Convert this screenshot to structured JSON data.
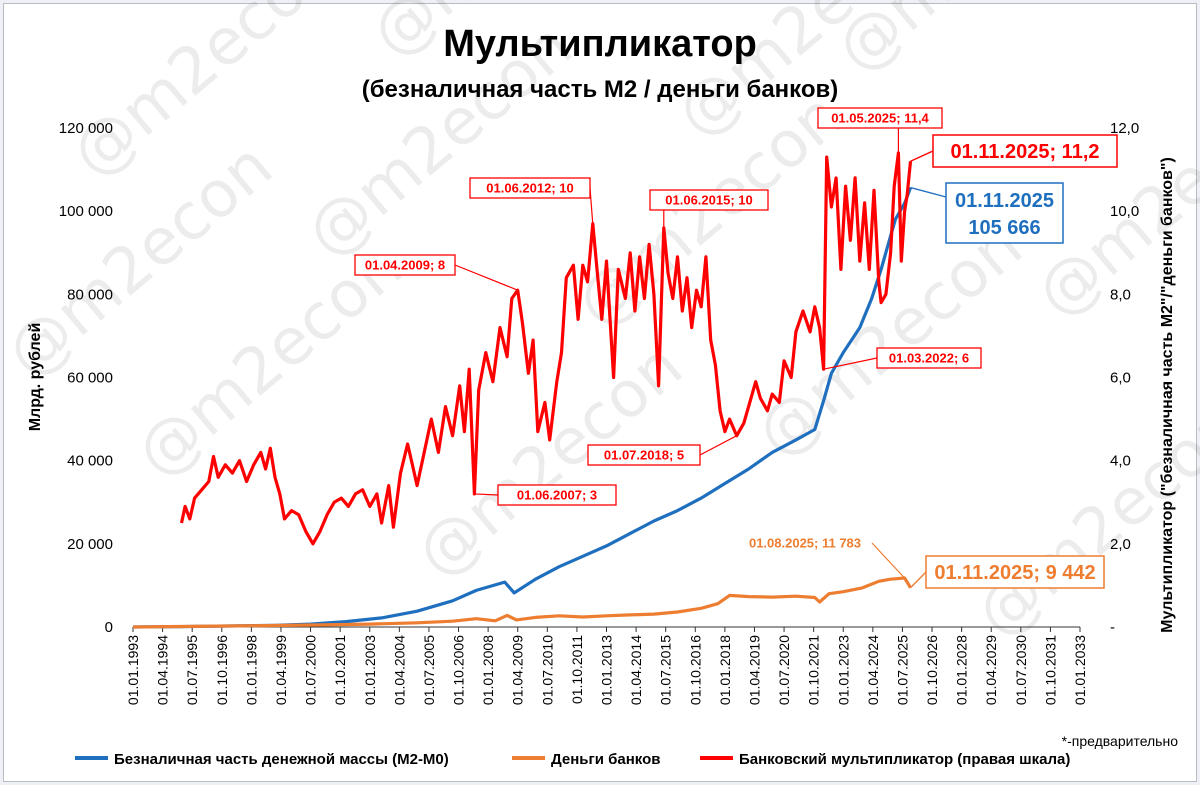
{
  "watermark": "@m2econ",
  "colors": {
    "m2": "#1f6fbf",
    "bank_money": "#ed7d31",
    "multiplier": "#ff0000"
  },
  "chart_data": {
    "type": "line",
    "title": "Мультипликатор",
    "subtitle": "(безналичная часть М2 / деньги банков)",
    "ylabel": "Млрд. рублей",
    "ylabel_right": "Мультипликатор (\"безналичная часть М2\"/\"деньги банков\")",
    "ylim": [
      0,
      120000
    ],
    "ylim_right": [
      0,
      12
    ],
    "yticks": [
      "0",
      "20 000",
      "40 000",
      "60 000",
      "80 000",
      "100 000",
      "120 000"
    ],
    "yticks_right": [
      "-",
      "2,0",
      "4,0",
      "6,0",
      "8,0",
      "10,0",
      "12,0"
    ],
    "xticks": [
      "01.01.1993",
      "01.04.1994",
      "01.07.1995",
      "01.10.1996",
      "01.01.1998",
      "01.04.1999",
      "01.07.2000",
      "01.10.2001",
      "01.01.2003",
      "01.04.2004",
      "01.07.2005",
      "01.10.2006",
      "01.01.2008",
      "01.04.2009",
      "01.07.2010",
      "01.10.2011",
      "01.01.2013",
      "01.04.2014",
      "01.07.2015",
      "01.10.2016",
      "01.01.2018",
      "01.04.2019",
      "01.07.2020",
      "01.10.2021",
      "01.01.2023",
      "01.04.2024",
      "01.07.2025",
      "01.10.2026",
      "01.01.2028",
      "01.04.2029",
      "01.07.2030",
      "01.10.2031",
      "01.01.2033"
    ],
    "x_start": 1993.0,
    "x_end": 2033.0,
    "grid": false,
    "legend_position": "bottom",
    "series": [
      {
        "name": "Безналичная часть денежной массы (М2-М0)",
        "axis": "left",
        "points": [
          [
            1993.0,
            0
          ],
          [
            1995.0,
            100
          ],
          [
            1997.0,
            250
          ],
          [
            1999.0,
            400
          ],
          [
            2000.5,
            700
          ],
          [
            2002.0,
            1300
          ],
          [
            2003.5,
            2200
          ],
          [
            2005.0,
            3800
          ],
          [
            2006.5,
            6300
          ],
          [
            2007.5,
            8800
          ],
          [
            2008.7,
            10800
          ],
          [
            2009.1,
            8200
          ],
          [
            2010.0,
            11500
          ],
          [
            2011.0,
            14500
          ],
          [
            2012.0,
            17000
          ],
          [
            2013.0,
            19500
          ],
          [
            2014.0,
            22500
          ],
          [
            2015.0,
            25500
          ],
          [
            2016.0,
            28000
          ],
          [
            2017.0,
            31000
          ],
          [
            2018.0,
            34500
          ],
          [
            2019.0,
            38000
          ],
          [
            2020.0,
            42000
          ],
          [
            2021.0,
            45000
          ],
          [
            2021.8,
            47500
          ],
          [
            2022.2,
            55000
          ],
          [
            2022.5,
            61000
          ],
          [
            2023.0,
            66000
          ],
          [
            2023.7,
            72000
          ],
          [
            2024.2,
            79000
          ],
          [
            2024.6,
            86000
          ],
          [
            2024.9,
            92000
          ],
          [
            2025.2,
            98000
          ],
          [
            2025.6,
            102000
          ],
          [
            2025.84,
            105666
          ]
        ]
      },
      {
        "name": "Деньги банков",
        "axis": "left",
        "points": [
          [
            1993.0,
            0
          ],
          [
            1995.0,
            120
          ],
          [
            1997.0,
            250
          ],
          [
            1999.0,
            350
          ],
          [
            2001.0,
            500
          ],
          [
            2003.0,
            700
          ],
          [
            2005.0,
            1000
          ],
          [
            2006.5,
            1400
          ],
          [
            2007.5,
            2000
          ],
          [
            2008.3,
            1500
          ],
          [
            2008.8,
            2800
          ],
          [
            2009.2,
            1700
          ],
          [
            2010.0,
            2300
          ],
          [
            2011.0,
            2700
          ],
          [
            2012.0,
            2400
          ],
          [
            2013.0,
            2700
          ],
          [
            2014.0,
            2900
          ],
          [
            2015.0,
            3100
          ],
          [
            2016.0,
            3600
          ],
          [
            2017.0,
            4500
          ],
          [
            2017.7,
            5600
          ],
          [
            2018.2,
            7600
          ],
          [
            2019.0,
            7300
          ],
          [
            2020.0,
            7200
          ],
          [
            2021.0,
            7400
          ],
          [
            2021.8,
            7100
          ],
          [
            2022.0,
            6000
          ],
          [
            2022.4,
            8000
          ],
          [
            2023.0,
            8500
          ],
          [
            2023.8,
            9400
          ],
          [
            2024.5,
            11000
          ],
          [
            2025.0,
            11500
          ],
          [
            2025.59,
            11783
          ],
          [
            2025.84,
            9442
          ]
        ]
      },
      {
        "name": "Банковский мультипликатор (правая шкала)",
        "axis": "right",
        "points": [
          [
            1995.05,
            2.5
          ],
          [
            1995.2,
            2.9
          ],
          [
            1995.4,
            2.6
          ],
          [
            1995.6,
            3.1
          ],
          [
            1995.9,
            3.3
          ],
          [
            1996.2,
            3.5
          ],
          [
            1996.4,
            4.1
          ],
          [
            1996.6,
            3.6
          ],
          [
            1996.9,
            3.9
          ],
          [
            1997.2,
            3.7
          ],
          [
            1997.5,
            4.0
          ],
          [
            1997.8,
            3.5
          ],
          [
            1998.1,
            3.9
          ],
          [
            1998.4,
            4.2
          ],
          [
            1998.6,
            3.8
          ],
          [
            1998.8,
            4.3
          ],
          [
            1999.0,
            3.6
          ],
          [
            1999.2,
            3.2
          ],
          [
            1999.4,
            2.6
          ],
          [
            1999.7,
            2.8
          ],
          [
            2000.0,
            2.7
          ],
          [
            2000.3,
            2.3
          ],
          [
            2000.6,
            2.0
          ],
          [
            2000.9,
            2.3
          ],
          [
            2001.2,
            2.7
          ],
          [
            2001.5,
            3.0
          ],
          [
            2001.8,
            3.1
          ],
          [
            2002.1,
            2.9
          ],
          [
            2002.4,
            3.2
          ],
          [
            2002.7,
            3.3
          ],
          [
            2003.0,
            2.9
          ],
          [
            2003.3,
            3.2
          ],
          [
            2003.5,
            2.5
          ],
          [
            2003.8,
            3.4
          ],
          [
            2004.0,
            2.4
          ],
          [
            2004.3,
            3.7
          ],
          [
            2004.6,
            4.4
          ],
          [
            2004.8,
            3.9
          ],
          [
            2005.0,
            3.4
          ],
          [
            2005.3,
            4.2
          ],
          [
            2005.6,
            5.0
          ],
          [
            2005.9,
            4.2
          ],
          [
            2006.2,
            5.3
          ],
          [
            2006.5,
            4.6
          ],
          [
            2006.8,
            5.8
          ],
          [
            2007.0,
            4.7
          ],
          [
            2007.2,
            6.2
          ],
          [
            2007.42,
            3.2
          ],
          [
            2007.6,
            5.7
          ],
          [
            2007.9,
            6.6
          ],
          [
            2008.2,
            5.9
          ],
          [
            2008.5,
            7.2
          ],
          [
            2008.8,
            6.5
          ],
          [
            2009.0,
            7.9
          ],
          [
            2009.25,
            8.1
          ],
          [
            2009.45,
            7.3
          ],
          [
            2009.7,
            6.1
          ],
          [
            2009.9,
            6.9
          ],
          [
            2010.1,
            4.7
          ],
          [
            2010.4,
            5.4
          ],
          [
            2010.6,
            4.5
          ],
          [
            2010.9,
            5.9
          ],
          [
            2011.1,
            6.6
          ],
          [
            2011.3,
            8.4
          ],
          [
            2011.6,
            8.7
          ],
          [
            2011.8,
            7.4
          ],
          [
            2012.0,
            8.7
          ],
          [
            2012.2,
            8.3
          ],
          [
            2012.42,
            9.7
          ],
          [
            2012.6,
            8.6
          ],
          [
            2012.8,
            7.4
          ],
          [
            2013.0,
            8.8
          ],
          [
            2013.3,
            6.0
          ],
          [
            2013.5,
            8.6
          ],
          [
            2013.8,
            7.9
          ],
          [
            2014.0,
            9.0
          ],
          [
            2014.2,
            7.6
          ],
          [
            2014.4,
            8.9
          ],
          [
            2014.6,
            7.9
          ],
          [
            2014.8,
            9.2
          ],
          [
            2015.0,
            8.0
          ],
          [
            2015.2,
            5.8
          ],
          [
            2015.42,
            9.6
          ],
          [
            2015.6,
            8.5
          ],
          [
            2015.8,
            7.9
          ],
          [
            2016.0,
            8.9
          ],
          [
            2016.2,
            7.6
          ],
          [
            2016.4,
            8.4
          ],
          [
            2016.6,
            7.2
          ],
          [
            2016.8,
            8.1
          ],
          [
            2017.0,
            7.7
          ],
          [
            2017.2,
            8.9
          ],
          [
            2017.4,
            6.9
          ],
          [
            2017.6,
            6.3
          ],
          [
            2017.8,
            5.2
          ],
          [
            2018.0,
            4.7
          ],
          [
            2018.2,
            5.0
          ],
          [
            2018.5,
            4.6
          ],
          [
            2018.8,
            4.9
          ],
          [
            2019.0,
            5.3
          ],
          [
            2019.3,
            5.9
          ],
          [
            2019.5,
            5.5
          ],
          [
            2019.8,
            5.2
          ],
          [
            2020.0,
            5.6
          ],
          [
            2020.3,
            5.4
          ],
          [
            2020.5,
            6.4
          ],
          [
            2020.8,
            6.0
          ],
          [
            2021.0,
            7.1
          ],
          [
            2021.3,
            7.6
          ],
          [
            2021.6,
            7.1
          ],
          [
            2021.8,
            7.7
          ],
          [
            2022.0,
            7.2
          ],
          [
            2022.17,
            6.2
          ],
          [
            2022.3,
            11.3
          ],
          [
            2022.5,
            10.1
          ],
          [
            2022.7,
            10.8
          ],
          [
            2022.9,
            8.6
          ],
          [
            2023.1,
            10.6
          ],
          [
            2023.3,
            9.3
          ],
          [
            2023.5,
            10.8
          ],
          [
            2023.7,
            8.8
          ],
          [
            2023.9,
            10.2
          ],
          [
            2024.1,
            8.6
          ],
          [
            2024.3,
            10.5
          ],
          [
            2024.5,
            8.3
          ],
          [
            2024.6,
            7.8
          ],
          [
            2024.8,
            8.0
          ],
          [
            2025.0,
            9.0
          ],
          [
            2025.15,
            10.6
          ],
          [
            2025.33,
            11.4
          ],
          [
            2025.45,
            8.8
          ],
          [
            2025.59,
            10.0
          ],
          [
            2025.7,
            10.4
          ],
          [
            2025.84,
            11.2
          ]
        ]
      }
    ],
    "annotations": [
      {
        "text": "01.04.2009; 8",
        "x": 2009.25,
        "y": 8.1,
        "axis": "right"
      },
      {
        "text": "01.06.2012; 10",
        "x": 2012.42,
        "y": 9.7,
        "axis": "right"
      },
      {
        "text": "01.06.2015; 10",
        "x": 2015.42,
        "y": 9.6,
        "axis": "right"
      },
      {
        "text": "01.05.2025; 11,4",
        "x": 2025.33,
        "y": 11.4,
        "axis": "right"
      },
      {
        "text": "01.03.2022; 6",
        "x": 2022.17,
        "y": 6.2,
        "axis": "right"
      },
      {
        "text": "01.07.2018; 5",
        "x": 2018.5,
        "y": 4.6,
        "axis": "right"
      },
      {
        "text": "01.06.2007; 3",
        "x": 2007.42,
        "y": 3.2,
        "axis": "right"
      },
      {
        "text": "01.08.2025; 11 783",
        "x": 2025.59,
        "y": 11783,
        "axis": "left"
      }
    ],
    "big_callouts": [
      {
        "text": "01.11.2025; 11,2",
        "x": 2025.84,
        "y": 11.2,
        "axis": "right"
      },
      {
        "line1": "01.11.2025",
        "line2": "105 666",
        "x": 2025.84,
        "y": 105666,
        "axis": "left"
      },
      {
        "text": "01.11.2025; 9 442",
        "x": 2025.84,
        "y": 9442,
        "axis": "left"
      }
    ]
  },
  "footnote": "*-предварительно"
}
